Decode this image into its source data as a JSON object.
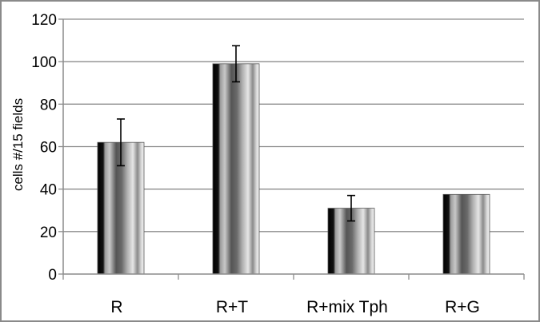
{
  "chart_data": {
    "type": "bar",
    "title": "",
    "xlabel": "",
    "ylabel": "cells #/15 fields",
    "categories": [
      "R",
      "R+T",
      "R+mix Tph",
      "R+G"
    ],
    "values": [
      62,
      99,
      31,
      37.5
    ],
    "error": [
      11,
      8.5,
      6,
      0
    ],
    "ylim": [
      0,
      120
    ],
    "yticks": [
      0,
      20,
      40,
      60,
      80,
      100,
      120
    ],
    "grid": true,
    "legend": "none"
  }
}
